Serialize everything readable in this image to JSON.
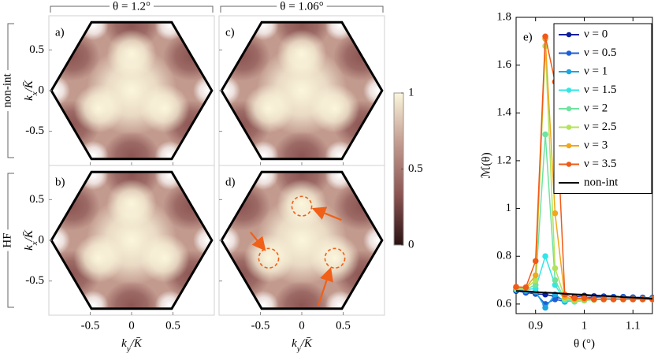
{
  "chart_data": [
    {
      "type": "heatmap",
      "columns": [
        "θ = 1.2°",
        "θ = 1.06°"
      ],
      "rows": [
        "non-int",
        "HF"
      ],
      "panels": [
        "a)",
        "b)",
        "c)",
        "d)"
      ],
      "xlabel": [
        "k",
        "y",
        "/K̄"
      ],
      "ylabel": [
        "k",
        "x",
        "/K̄"
      ],
      "xlim": [
        -1,
        1
      ],
      "ylim": [
        -0.92,
        0.92
      ],
      "xticks": [
        -0.5,
        0,
        0.5
      ],
      "yticks": [
        -0.5,
        0,
        0.5
      ],
      "colormap": [
        "#2a1212",
        "#8c5553",
        "#c29a8e",
        "#fbf6dc"
      ],
      "colorbar_lim": [
        0,
        1
      ],
      "colorbar_ticks": [
        0,
        0.5,
        1
      ]
    },
    {
      "type": "line",
      "label": "e)",
      "xlabel": "θ (°)",
      "ylabel": "ℳ(θ)",
      "x": [
        0.86,
        0.88,
        0.9,
        0.92,
        0.94,
        0.96,
        0.98,
        1.0,
        1.02,
        1.04,
        1.06,
        1.08,
        1.1,
        1.12,
        1.14
      ],
      "xlim": [
        0.86,
        1.14
      ],
      "xticks": [
        0.9,
        1,
        1.1
      ],
      "ylim": [
        0.56,
        1.8
      ],
      "yticks": [
        0.6,
        0.8,
        1,
        1.2,
        1.4,
        1.6,
        1.8
      ],
      "legend": "upper right",
      "series": [
        {
          "name": "ν = 0",
          "color": "#0b1f9e",
          "values": [
            0.655,
            0.648,
            0.643,
            0.64,
            0.632,
            0.615,
            0.63,
            0.635,
            0.633,
            0.632,
            0.63,
            0.63,
            0.628,
            0.627,
            0.626
          ]
        },
        {
          "name": "ν = 0.5",
          "color": "#1f5fd6",
          "values": [
            0.658,
            0.65,
            0.645,
            0.6,
            0.62,
            0.61,
            0.62,
            0.625,
            0.628,
            0.63,
            0.63,
            0.63,
            0.628,
            0.627,
            0.626
          ]
        },
        {
          "name": "ν = 1",
          "color": "#1aa6e0",
          "values": [
            0.66,
            0.655,
            0.652,
            0.585,
            0.64,
            0.61,
            0.615,
            0.62,
            0.62,
            0.622,
            0.622,
            0.622,
            0.622,
            0.622,
            0.622
          ]
        },
        {
          "name": "ν = 1.5",
          "color": "#33e6e6",
          "values": [
            0.662,
            0.66,
            0.665,
            0.8,
            0.68,
            0.615,
            0.61,
            0.615,
            0.618,
            0.62,
            0.62,
            0.62,
            0.62,
            0.62,
            0.62
          ]
        },
        {
          "name": "ν = 2",
          "color": "#6fe3a0",
          "values": [
            0.665,
            0.662,
            0.68,
            1.31,
            0.7,
            0.62,
            0.612,
            0.615,
            0.618,
            0.62,
            0.62,
            0.62,
            0.62,
            0.62,
            0.62
          ]
        },
        {
          "name": "ν = 2.5",
          "color": "#b3e35a",
          "values": [
            0.668,
            0.665,
            0.7,
            1.68,
            0.75,
            0.625,
            0.615,
            0.617,
            0.618,
            0.62,
            0.62,
            0.62,
            0.62,
            0.62,
            0.62
          ]
        },
        {
          "name": "ν = 3",
          "color": "#f0a81c",
          "values": [
            0.67,
            0.668,
            0.72,
            1.71,
            0.98,
            0.63,
            0.62,
            0.62,
            0.62,
            0.62,
            0.62,
            0.62,
            0.62,
            0.62,
            0.62
          ]
        },
        {
          "name": "ν = 3.5",
          "color": "#f05a18",
          "values": [
            0.672,
            0.67,
            0.78,
            1.72,
            1.53,
            0.64,
            0.625,
            0.625,
            0.62,
            0.62,
            0.62,
            0.62,
            0.62,
            0.62,
            0.62
          ]
        },
        {
          "name": "non-int",
          "color": "#000000",
          "marker": false,
          "values": [
            0.655,
            0.653,
            0.65,
            0.648,
            0.646,
            0.643,
            0.641,
            0.639,
            0.636,
            0.634,
            0.632,
            0.629,
            0.627,
            0.625,
            0.622
          ]
        }
      ]
    }
  ]
}
